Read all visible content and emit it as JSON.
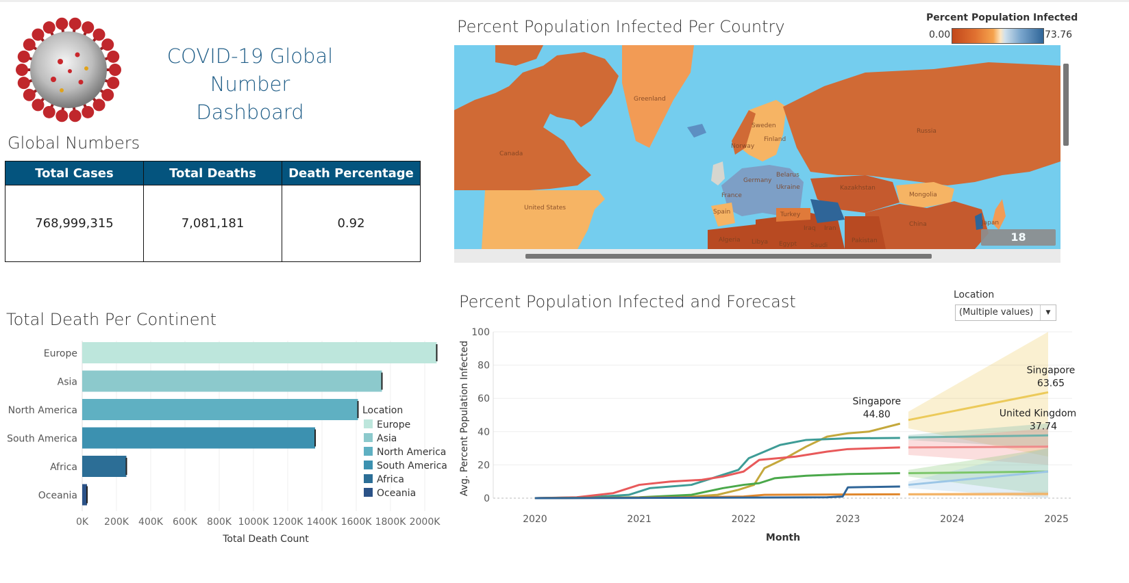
{
  "dashboard": {
    "title_line1": "COVID-19 Global Number",
    "title_line2": "Dashboard",
    "image_name": "coronavirus-illustration"
  },
  "global_numbers": {
    "title": "Global Numbers",
    "headers": [
      "Total Cases",
      "Total Deaths",
      "Death Percentage"
    ],
    "values": [
      "768,999,315",
      "7,081,181",
      "0.92"
    ]
  },
  "map": {
    "title": "Percent Population Infected Per Country",
    "legend_title": "Percent Population Infected",
    "legend_min": "0.00",
    "legend_max": "73.76",
    "unknown_badge": "18 unknown",
    "country_labels": [
      "Greenland",
      "Canada",
      "United States",
      "Russia",
      "Kazakhstan",
      "Mongolia",
      "China",
      "Japan",
      "Pakistan",
      "Iran",
      "Iraq",
      "Saudi",
      "Egypt",
      "Libya",
      "Algeria",
      "Turkey",
      "Ukraine",
      "Belarus",
      "Germany",
      "France",
      "Spain",
      "Norway",
      "Sweden",
      "Finland"
    ],
    "colors": {
      "ocean": "#74cdee",
      "low": "#c2481c",
      "mid": "#f5a34d",
      "high": "#2f6598"
    }
  },
  "continent_chart": {
    "title": "Total Death Per Continent",
    "legend_title": "Location",
    "chart_data": {
      "type": "bar",
      "orientation": "horizontal",
      "categories": [
        "Europe",
        "Asia",
        "North America",
        "South America",
        "Africa",
        "Oceania"
      ],
      "values": [
        2070000,
        1750000,
        1610000,
        1360000,
        258000,
        28000
      ],
      "colors": [
        "#bde6dc",
        "#8cc9cc",
        "#5fb0c2",
        "#3c91b0",
        "#2c6e96",
        "#2b5287"
      ],
      "xlabel": "Total Death Count",
      "xticks": [
        "0K",
        "200K",
        "400K",
        "600K",
        "800K",
        "1000K",
        "1200K",
        "1400K",
        "1600K",
        "1800K",
        "2000K"
      ],
      "xlim": [
        0,
        2140000
      ],
      "grid": true,
      "legend_position": "right"
    }
  },
  "forecast_chart": {
    "title": "Percent Population Infected and Forecast",
    "dropdown_label": "Location",
    "dropdown_value": "(Multiple values)",
    "chart_data": {
      "type": "line",
      "xlabel": "Month",
      "ylabel": "Avg. Percent Population Infected",
      "xticks": [
        "2020",
        "2021",
        "2022",
        "2023",
        "2024",
        "2025"
      ],
      "yticks": [
        0,
        20,
        40,
        60,
        80,
        100
      ],
      "ylim": [
        0,
        100
      ],
      "xlim": [
        2019.6,
        2025.15
      ],
      "actual_end": 2023.5,
      "forecast_start": 2023.58,
      "forecast_end": 2024.92,
      "series": [
        {
          "name": "Singapore",
          "color": "#c4a83c",
          "forecast_color": "#ecca5a",
          "x": [
            2020,
            2021.4,
            2021.75,
            2021.95,
            2022.1,
            2022.2,
            2022.4,
            2022.6,
            2022.8,
            2023,
            2023.2,
            2023.5
          ],
          "y": [
            0,
            0.5,
            2,
            5,
            8,
            18,
            24,
            31,
            37,
            39,
            40,
            44.8
          ],
          "forecast": [
            47,
            63.65
          ],
          "band": [
            [
              42,
              52
            ],
            [
              25,
              100
            ]
          ]
        },
        {
          "name": "United Kingdom",
          "color": "#3e9c96",
          "forecast_color": "#6fb2aa",
          "x": [
            2020,
            2020.5,
            2020.9,
            2021.1,
            2021.5,
            2021.8,
            2021.95,
            2022.05,
            2022.2,
            2022.35,
            2022.6,
            2022.8,
            2023,
            2023.5
          ],
          "y": [
            0,
            0.5,
            2,
            6,
            8,
            14,
            17,
            24,
            28,
            32,
            35,
            35.5,
            36,
            36.2
          ],
          "forecast": [
            36.5,
            37.74
          ],
          "band": [
            [
              35,
              38
            ],
            [
              30,
              45
            ]
          ]
        },
        {
          "name": "",
          "color": "#e8595a",
          "forecast_color": "#ef8a8a",
          "x": [
            2020,
            2020.4,
            2020.75,
            2021,
            2021.3,
            2021.6,
            2021.8,
            2022,
            2022.15,
            2022.5,
            2022.8,
            2023,
            2023.5
          ],
          "y": [
            0,
            0.5,
            3,
            8,
            10,
            11,
            13,
            16,
            23,
            25,
            28,
            29.5,
            30.5
          ],
          "forecast": [
            30.5,
            31
          ],
          "band": [
            [
              26,
              35
            ],
            [
              20,
              42
            ]
          ]
        },
        {
          "name": "",
          "color": "#4aa84a",
          "forecast_color": "#7cc66a",
          "x": [
            2020,
            2021,
            2021.5,
            2021.8,
            2022,
            2022.15,
            2022.3,
            2022.6,
            2023,
            2023.5
          ],
          "y": [
            0,
            0.5,
            2,
            6,
            8,
            9,
            12,
            13.5,
            14.5,
            15
          ],
          "forecast": [
            15,
            16
          ],
          "band": [
            [
              13,
              17
            ],
            [
              2,
              30
            ]
          ]
        },
        {
          "name": "",
          "color": "#e0872c",
          "forecast_color": "#f3b264",
          "x": [
            2020,
            2021.5,
            2022,
            2022.2,
            2023,
            2023.5
          ],
          "y": [
            0,
            0.5,
            1,
            2,
            2.2,
            2.3
          ],
          "forecast": [
            2.3,
            2.5
          ],
          "band": [
            [
              1.5,
              3
            ],
            [
              1,
              4
            ]
          ]
        },
        {
          "name": "",
          "color": "#2f6598",
          "forecast_color": "#9cc6e6",
          "x": [
            2020,
            2022.8,
            2022.95,
            2023,
            2023.5
          ],
          "y": [
            0,
            0.5,
            1,
            6.5,
            7
          ],
          "forecast": [
            8,
            16
          ],
          "band": [
            [
              6,
              10
            ],
            [
              0,
              30
            ]
          ]
        }
      ],
      "annotations": [
        {
          "label": "Singapore",
          "value": "44.80"
        },
        {
          "label": "Singapore",
          "value": "63.65"
        },
        {
          "label": "United Kingdom",
          "value": "37.74"
        }
      ]
    }
  }
}
